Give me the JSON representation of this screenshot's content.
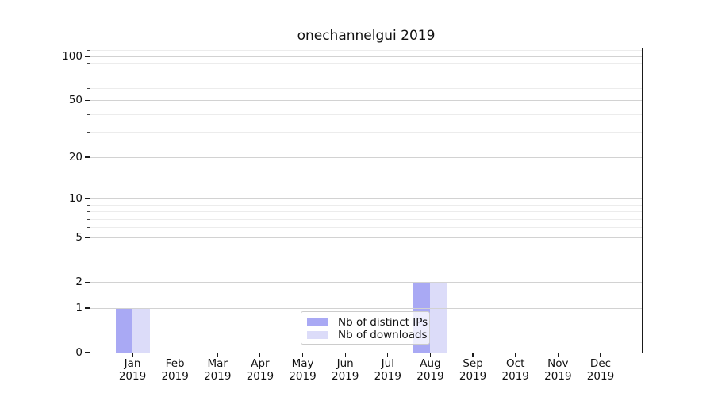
{
  "chart_data": {
    "type": "bar",
    "title": "onechannelgui 2019",
    "x_tick_months": [
      "Jan",
      "Feb",
      "Mar",
      "Apr",
      "May",
      "Jun",
      "Jul",
      "Aug",
      "Sep",
      "Oct",
      "Nov",
      "Dec"
    ],
    "x_tick_year": "2019",
    "series": [
      {
        "name": "Nb of distinct IPs",
        "color": "#a9a9f4",
        "values": [
          1,
          0,
          0,
          0,
          0,
          0,
          0,
          2,
          0,
          0,
          0,
          0
        ]
      },
      {
        "name": "Nb of downloads",
        "color": "#dcdcf9",
        "values": [
          1,
          0,
          0,
          0,
          0,
          0,
          0,
          2,
          0,
          0,
          0,
          0
        ]
      }
    ],
    "yscale": "log1p",
    "ylim": [
      0,
      114
    ],
    "yticks": [
      0,
      1,
      2,
      5,
      10,
      20,
      50,
      100
    ],
    "yticks_minor": [
      3,
      4,
      6,
      7,
      8,
      9,
      30,
      40,
      60,
      70,
      80,
      90,
      110
    ],
    "grid": "horizontal-major-and-minor",
    "legend_position": "lower center"
  },
  "colors": {
    "grid_major": "#d2d2d2",
    "grid_minor": "#ececec",
    "spine": "#1a1a1a",
    "text": "#111111",
    "legend_border": "#cccccc",
    "legend_background": "rgba(255,255,255,0.8)"
  }
}
